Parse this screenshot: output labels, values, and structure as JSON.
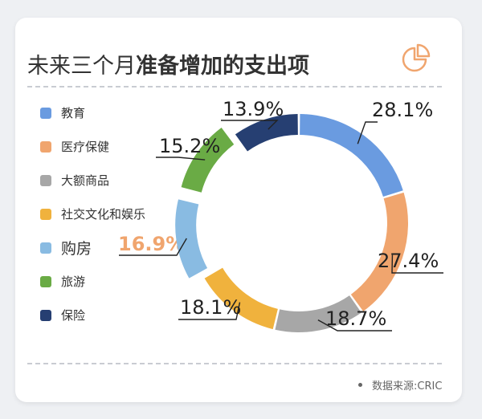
{
  "title": {
    "normal": "未来三个月",
    "bold": "准备增加的支出项"
  },
  "source": "数据来源:CRIC",
  "chart_data": {
    "type": "pie",
    "donut": true,
    "categories": [
      "教育",
      "医疗保健",
      "大额商品",
      "社交文化和娱乐",
      "购房",
      "旅游",
      "保险"
    ],
    "values": [
      28.1,
      27.4,
      18.7,
      18.1,
      16.9,
      15.2,
      13.9
    ],
    "labels": [
      "28.1%",
      "27.4%",
      "18.7%",
      "18.1%",
      "16.9%",
      "15.2%",
      "13.9%"
    ],
    "colors": [
      "#6a9be0",
      "#f0a56e",
      "#a7a7a7",
      "#f0b23d",
      "#89bbe2",
      "#6aab45",
      "#263f72"
    ],
    "exploded": [
      "购房",
      "旅游"
    ],
    "highlighted": "购房",
    "legend_position": "left"
  }
}
